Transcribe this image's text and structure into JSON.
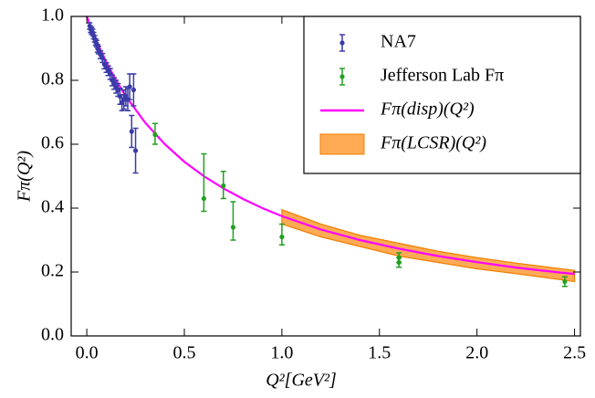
{
  "chart_data": {
    "type": "scatter",
    "x_label": "Q²[GeV²]",
    "y_label": "Fπ(Q²)",
    "xlim": [
      -0.08,
      2.53
    ],
    "ylim": [
      0,
      1
    ],
    "xticks": [
      {
        "value": 0,
        "label": "0.0"
      },
      0.5,
      {
        "value": 1,
        "label": "1.0"
      },
      1.5,
      {
        "value": 2,
        "label": "2.0"
      },
      2.5
    ],
    "yticks": [
      {
        "value": 0,
        "label": "0.0"
      },
      0.2,
      0.4,
      0.6,
      0.8,
      {
        "value": 1,
        "label": "1.0"
      }
    ],
    "legend": "upper right",
    "series": [
      {
        "name": "NA7",
        "type": "errorbar",
        "color": "#3a3aa8",
        "x": [
          0.015,
          0.02,
          0.025,
          0.03,
          0.035,
          0.04,
          0.045,
          0.05,
          0.055,
          0.06,
          0.07,
          0.08,
          0.09,
          0.1,
          0.11,
          0.12,
          0.13,
          0.14,
          0.15,
          0.16,
          0.17,
          0.18,
          0.19,
          0.2,
          0.21,
          0.22,
          0.23,
          0.24,
          0.25
        ],
        "values": [
          0.97,
          0.96,
          0.955,
          0.95,
          0.94,
          0.93,
          0.92,
          0.915,
          0.9,
          0.895,
          0.88,
          0.87,
          0.85,
          0.84,
          0.83,
          0.82,
          0.8,
          0.79,
          0.78,
          0.77,
          0.75,
          0.73,
          0.74,
          0.75,
          0.74,
          0.78,
          0.64,
          0.77,
          0.58
        ],
        "error_minus": [
          0.01,
          0.01,
          0.01,
          0.01,
          0.01,
          0.01,
          0.01,
          0.01,
          0.012,
          0.012,
          0.012,
          0.014,
          0.014,
          0.015,
          0.015,
          0.017,
          0.017,
          0.018,
          0.02,
          0.02,
          0.025,
          0.025,
          0.03,
          0.03,
          0.035,
          0.04,
          0.05,
          0.05,
          0.07
        ],
        "error_plus": [
          0.01,
          0.01,
          0.01,
          0.01,
          0.01,
          0.01,
          0.01,
          0.01,
          0.012,
          0.012,
          0.012,
          0.014,
          0.014,
          0.015,
          0.015,
          0.017,
          0.017,
          0.018,
          0.02,
          0.02,
          0.025,
          0.025,
          0.03,
          0.03,
          0.035,
          0.04,
          0.05,
          0.05,
          0.07
        ]
      },
      {
        "name": "Jefferson Lab Fπ",
        "type": "errorbar",
        "color": "#22a022",
        "x": [
          0.35,
          0.6,
          0.7,
          0.75,
          1.0,
          1.6,
          1.6,
          2.45
        ],
        "values": [
          0.63,
          0.43,
          0.47,
          0.34,
          0.31,
          0.245,
          0.23,
          0.17
        ],
        "error_minus": [
          0.03,
          0.04,
          0.04,
          0.04,
          0.025,
          0.015,
          0.015,
          0.015
        ],
        "error_plus": [
          0.035,
          0.14,
          0.045,
          0.08,
          0.04,
          0.015,
          0.015,
          0.015
        ]
      },
      {
        "name": "Fπ(disp)(Q²)",
        "type": "line",
        "color": "#ff00ff",
        "x": [
          0,
          0.05,
          0.1,
          0.15,
          0.2,
          0.3,
          0.4,
          0.5,
          0.6,
          0.7,
          0.8,
          0.9,
          1.0,
          1.2,
          1.4,
          1.6,
          1.8,
          2.0,
          2.2,
          2.4,
          2.5
        ],
        "values": [
          1,
          0.923,
          0.857,
          0.8,
          0.75,
          0.667,
          0.6,
          0.545,
          0.5,
          0.462,
          0.429,
          0.4,
          0.375,
          0.333,
          0.3,
          0.273,
          0.25,
          0.231,
          0.214,
          0.2,
          0.194
        ]
      },
      {
        "name": "Fπ(LCSR)(Q²)",
        "type": "band",
        "color": "#ffaa55",
        "x": [
          1.0,
          1.2,
          1.4,
          1.6,
          1.8,
          2.0,
          2.2,
          2.5
        ],
        "low": [
          0.35,
          0.31,
          0.28,
          0.25,
          0.23,
          0.21,
          0.195,
          0.17
        ],
        "high": [
          0.395,
          0.35,
          0.315,
          0.29,
          0.265,
          0.245,
          0.228,
          0.205
        ]
      }
    ]
  }
}
